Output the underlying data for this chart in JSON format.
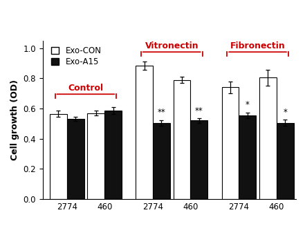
{
  "x_labels": [
    "2774",
    "460",
    "2774",
    "460",
    "2774",
    "460"
  ],
  "exo_con_values": [
    0.565,
    0.57,
    0.885,
    0.79,
    0.74,
    0.805
  ],
  "exo_a15_values": [
    0.53,
    0.585,
    0.505,
    0.52,
    0.555,
    0.505
  ],
  "exo_con_errors": [
    0.022,
    0.018,
    0.028,
    0.022,
    0.038,
    0.052
  ],
  "exo_a15_errors": [
    0.013,
    0.022,
    0.018,
    0.016,
    0.018,
    0.022
  ],
  "significance": [
    "",
    "",
    "**",
    "**",
    "*",
    "*"
  ],
  "bar_width": 0.32,
  "ylabel": "Cell growth (OD)",
  "ylim": [
    0,
    1.05
  ],
  "yticks": [
    0,
    0.2,
    0.4,
    0.6,
    0.8,
    1
  ],
  "legend_labels": [
    "Exo-CON",
    "Exo-A15"
  ],
  "con_color": "#ffffff",
  "a15_color": "#111111",
  "edge_color": "#000000",
  "bracket_color": "#cc0000",
  "axis_fontsize": 9,
  "tick_fontsize": 8.5,
  "legend_fontsize": 8.5,
  "sig_fontsize": 8.5
}
